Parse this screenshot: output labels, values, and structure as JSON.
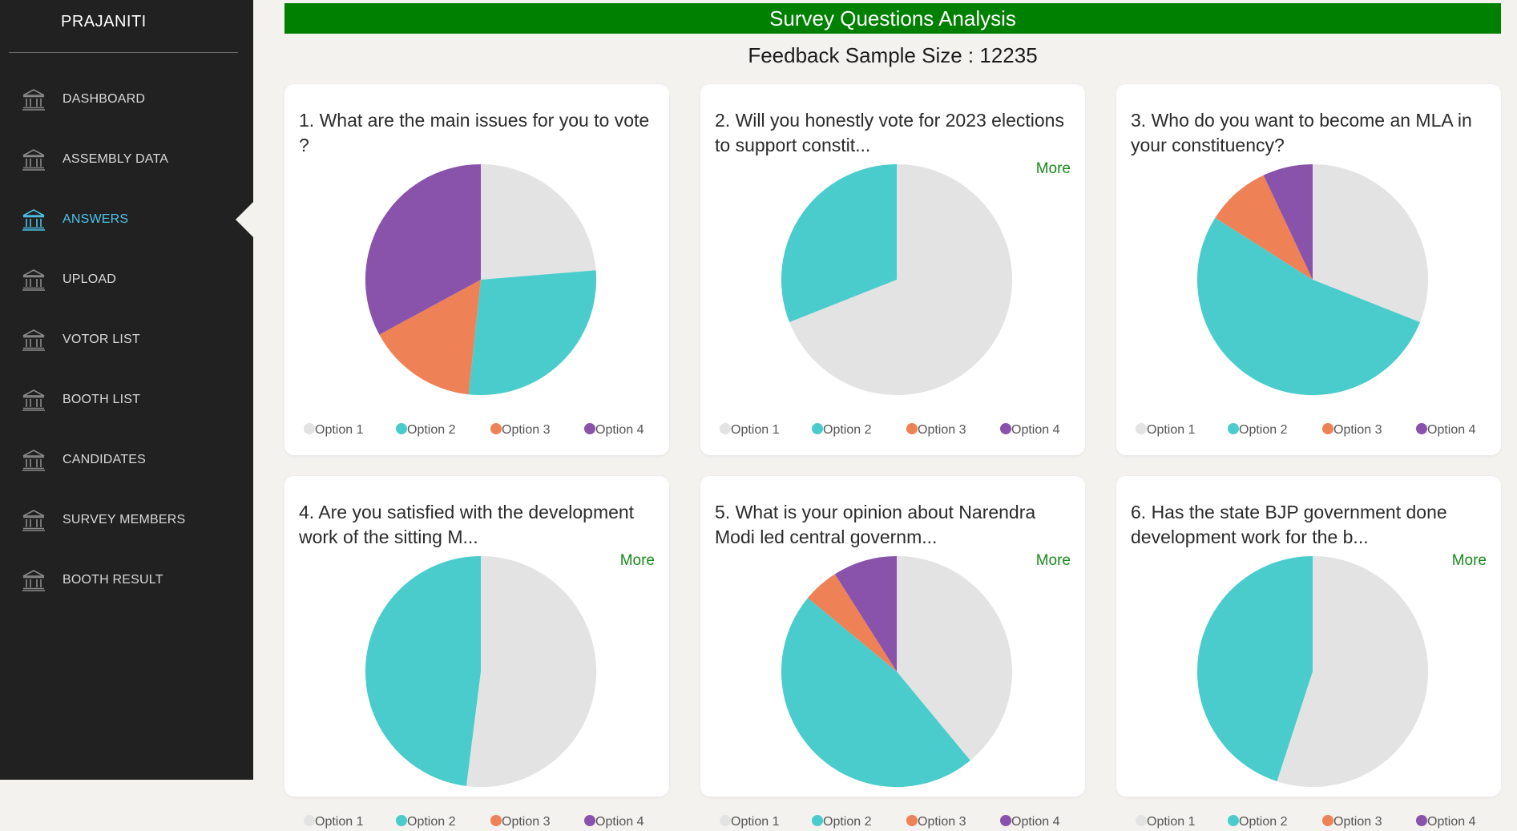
{
  "app": {
    "brand": "PRAJANITI"
  },
  "sidebar": {
    "items": [
      {
        "label": "DASHBOARD",
        "active": false
      },
      {
        "label": "ASSEMBLY DATA",
        "active": false
      },
      {
        "label": "ANSWERS",
        "active": true
      },
      {
        "label": "UPLOAD",
        "active": false
      },
      {
        "label": "VOTOR LIST",
        "active": false
      },
      {
        "label": "BOOTH LIST",
        "active": false
      },
      {
        "label": "CANDIDATES",
        "active": false
      },
      {
        "label": "SURVEY MEMBERS",
        "active": false
      },
      {
        "label": "BOOTH RESULT",
        "active": false
      }
    ]
  },
  "main": {
    "title": "Survey Questions Analysis",
    "sample_size": "Feedback Sample Size : 12235",
    "more_label": "More"
  },
  "colors": {
    "option1": "#e3e3e3",
    "option2": "#4acccd",
    "option3": "#ef8157",
    "option4": "#8953ac",
    "title_bar": "#008000",
    "active_nav": "#4dc2e8"
  },
  "legend": [
    "Option 1",
    "Option 2",
    "Option 3",
    "Option 4"
  ],
  "chart_data": [
    {
      "type": "pie",
      "question": "1. What are the main issues for you to vote ?",
      "categories": [
        "Option 1",
        "Option 2",
        "Option 3",
        "Option 4"
      ],
      "values": [
        0.237,
        0.28,
        0.154,
        0.329
      ],
      "show_more": false
    },
    {
      "type": "pie",
      "question": "2. Will you honestly vote for 2023 elections to support constit...",
      "categories": [
        "Option 1",
        "Option 2",
        "Option 3",
        "Option 4"
      ],
      "values": [
        0.69,
        0.31,
        0,
        0
      ],
      "show_more": true
    },
    {
      "type": "pie",
      "question": "3. Who do you want to become an MLA in your constituency?",
      "categories": [
        "Option 1",
        "Option 2",
        "Option 3",
        "Option 4"
      ],
      "values": [
        0.31,
        0.53,
        0.09,
        0.07
      ],
      "show_more": false
    },
    {
      "type": "pie",
      "question": "4. Are you satisfied with the development work of the sitting M...",
      "categories": [
        "Option 1",
        "Option 2",
        "Option 3",
        "Option 4"
      ],
      "values": [
        0.52,
        0.48,
        0,
        0
      ],
      "show_more": true
    },
    {
      "type": "pie",
      "question": "5. What is your opinion about Narendra Modi led central governm...",
      "categories": [
        "Option 1",
        "Option 2",
        "Option 3",
        "Option 4"
      ],
      "values": [
        0.39,
        0.47,
        0.05,
        0.09
      ],
      "show_more": true
    },
    {
      "type": "pie",
      "question": "6. Has the state BJP government done development work for the b...",
      "categories": [
        "Option 1",
        "Option 2",
        "Option 3",
        "Option 4"
      ],
      "values": [
        0.55,
        0.45,
        0,
        0
      ],
      "show_more": true
    }
  ]
}
